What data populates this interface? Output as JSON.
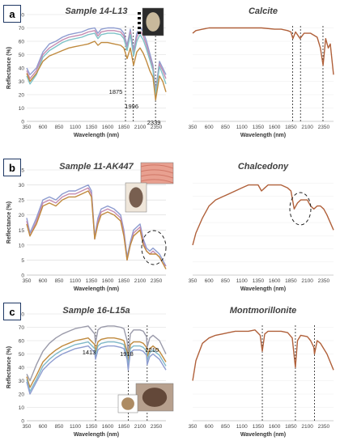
{
  "panel_letters": [
    "a",
    "b",
    "c"
  ],
  "chart_data": [
    {
      "id": "a-left",
      "type": "line",
      "title": "Sample 14-L13",
      "xlabel": "Wavelength (nm)",
      "ylabel": "Reflectance (%)",
      "xlim": [
        350,
        2500
      ],
      "ylim": [
        0,
        80
      ],
      "xticks": [
        350,
        600,
        850,
        1100,
        1350,
        1600,
        1850,
        2100,
        2350
      ],
      "yticks": [
        0,
        10,
        20,
        30,
        40,
        50,
        60,
        70,
        80
      ],
      "vlines": [
        1875,
        1996,
        2339
      ],
      "annotations": [
        "1875",
        "1996",
        "2339"
      ],
      "series": [
        {
          "color": "#8e9cd0",
          "x": [
            350,
            400,
            500,
            600,
            700,
            800,
            900,
            1000,
            1100,
            1200,
            1300,
            1400,
            1450,
            1500,
            1600,
            1700,
            1800,
            1850,
            1900,
            1950,
            2000,
            2050,
            2100,
            2150,
            2200,
            2250,
            2300,
            2340,
            2400,
            2450,
            2500
          ],
          "y": [
            40,
            35,
            40,
            52,
            58,
            60,
            63,
            65,
            66,
            67,
            69,
            70,
            66,
            69,
            70,
            70,
            69,
            66,
            57,
            69,
            53,
            66,
            71,
            67,
            60,
            51,
            42,
            23,
            45,
            40,
            35
          ]
        },
        {
          "color": "#c48bb0",
          "x": [
            350,
            400,
            500,
            600,
            700,
            800,
            900,
            1000,
            1100,
            1200,
            1300,
            1400,
            1450,
            1500,
            1600,
            1700,
            1800,
            1850,
            1900,
            1950,
            2000,
            2050,
            2100,
            2150,
            2200,
            2250,
            2300,
            2340,
            2400,
            2450,
            2500
          ],
          "y": [
            38,
            32,
            38,
            50,
            55,
            58,
            61,
            63,
            64,
            65,
            67,
            68,
            64,
            67,
            68,
            68,
            67,
            64,
            55,
            67,
            51,
            63,
            68,
            64,
            57,
            48,
            40,
            22,
            43,
            38,
            32
          ]
        },
        {
          "color": "#7fc3c8",
          "x": [
            350,
            400,
            500,
            600,
            700,
            800,
            900,
            1000,
            1100,
            1200,
            1300,
            1400,
            1450,
            1500,
            1600,
            1700,
            1800,
            1850,
            1900,
            1950,
            2000,
            2050,
            2100,
            2150,
            2200,
            2250,
            2300,
            2340,
            2400,
            2450,
            2500
          ],
          "y": [
            34,
            28,
            35,
            48,
            53,
            56,
            59,
            61,
            62,
            63,
            65,
            66,
            62,
            65,
            66,
            66,
            65,
            62,
            53,
            65,
            49,
            60,
            65,
            61,
            54,
            46,
            38,
            20,
            41,
            35,
            28
          ]
        },
        {
          "color": "#c08a3e",
          "x": [
            350,
            400,
            500,
            600,
            700,
            800,
            900,
            1000,
            1100,
            1200,
            1300,
            1400,
            1450,
            1500,
            1600,
            1700,
            1800,
            1850,
            1900,
            1950,
            2000,
            2050,
            2100,
            2150,
            2200,
            2250,
            2300,
            2340,
            2400,
            2450,
            2500
          ],
          "y": [
            36,
            30,
            36,
            45,
            49,
            51,
            53,
            55,
            56,
            57,
            58,
            60,
            57,
            59,
            59,
            58,
            57,
            55,
            47,
            55,
            42,
            52,
            55,
            51,
            45,
            38,
            33,
            16,
            34,
            30,
            22
          ]
        }
      ]
    },
    {
      "id": "a-right",
      "type": "line",
      "title": "Calcite",
      "xlabel": "Wavelength (nm)",
      "ylabel": "",
      "xlim": [
        350,
        2500
      ],
      "ylim": [
        0,
        80
      ],
      "xticks": [
        350,
        600,
        850,
        1100,
        1350,
        1600,
        1850,
        2100,
        2350
      ],
      "yticks": [],
      "vlines": [
        1875,
        1996,
        2339
      ],
      "annotations": [],
      "series": [
        {
          "color": "#b0603a",
          "x": [
            350,
            400,
            500,
            600,
            800,
            1000,
            1200,
            1400,
            1600,
            1700,
            1800,
            1850,
            1880,
            1920,
            1990,
            2050,
            2150,
            2250,
            2300,
            2340,
            2380,
            2420,
            2450,
            2500
          ],
          "y": [
            66,
            68,
            69,
            70,
            70,
            70,
            70,
            70,
            69,
            69,
            68,
            67,
            62,
            67,
            62,
            66,
            66,
            63,
            55,
            42,
            62,
            55,
            58,
            35
          ]
        }
      ]
    },
    {
      "id": "b-left",
      "type": "line",
      "title": "Sample 11-AK447",
      "xlabel": "Wavelength (nm)",
      "ylabel": "Reflectance (%)",
      "xlim": [
        350,
        2500
      ],
      "ylim": [
        0,
        35
      ],
      "xticks": [
        350,
        600,
        850,
        1100,
        1350,
        1600,
        1850,
        2100,
        2350
      ],
      "yticks": [
        0,
        5,
        10,
        15,
        20,
        25,
        30,
        35
      ],
      "vlines": [],
      "annotations": [],
      "series": [
        {
          "color": "#8e9cd0",
          "x": [
            350,
            400,
            500,
            600,
            700,
            800,
            900,
            1000,
            1100,
            1200,
            1300,
            1350,
            1400,
            1450,
            1500,
            1600,
            1700,
            1800,
            1850,
            1900,
            1950,
            2000,
            2100,
            2150,
            2200,
            2250,
            2300,
            2350,
            2400,
            2450,
            2500
          ],
          "y": [
            19,
            14,
            19,
            25,
            26,
            25,
            27,
            28,
            28,
            29,
            30,
            28,
            13,
            19,
            22,
            23,
            22,
            20,
            15,
            6,
            11,
            15,
            17,
            12,
            9,
            8,
            9,
            8,
            7,
            5,
            3
          ]
        },
        {
          "color": "#c48bb0",
          "x": [
            350,
            400,
            500,
            600,
            700,
            800,
            900,
            1000,
            1100,
            1200,
            1300,
            1350,
            1400,
            1450,
            1500,
            1600,
            1700,
            1800,
            1850,
            1900,
            1950,
            2000,
            2100,
            2150,
            2200,
            2250,
            2300,
            2350,
            2400,
            2450,
            2500
          ],
          "y": [
            18,
            13,
            18,
            24,
            25,
            24,
            26,
            27,
            27,
            28,
            29,
            27,
            12,
            18,
            21,
            22,
            21,
            19,
            14,
            5,
            10,
            14,
            16,
            11,
            8,
            7,
            8,
            7,
            6,
            4,
            3
          ]
        },
        {
          "color": "#c08a3e",
          "x": [
            350,
            400,
            500,
            600,
            700,
            800,
            900,
            1000,
            1100,
            1200,
            1300,
            1350,
            1400,
            1450,
            1500,
            1600,
            1700,
            1800,
            1850,
            1900,
            1950,
            2000,
            2100,
            2150,
            2200,
            2250,
            2300,
            2350,
            2400,
            2450,
            2500
          ],
          "y": [
            17,
            13,
            17,
            23,
            24,
            23,
            25,
            26,
            26,
            27,
            28,
            26,
            12,
            17,
            20,
            21,
            20,
            18,
            13,
            5,
            10,
            13,
            15,
            10,
            8,
            7,
            7,
            7,
            6,
            4,
            2
          ]
        }
      ]
    },
    {
      "id": "b-right",
      "type": "line",
      "title": "Chalcedony",
      "xlabel": "Wavelength (nm)",
      "ylabel": "",
      "xlim": [
        350,
        2500
      ],
      "ylim": [
        0,
        35
      ],
      "xticks": [
        350,
        600,
        850,
        1100,
        1350,
        1600,
        1850,
        2100,
        2350
      ],
      "yticks": [],
      "vlines": [],
      "annotations": [],
      "series": [
        {
          "color": "#b0603a",
          "x": [
            350,
            400,
            500,
            600,
            700,
            800,
            900,
            1000,
            1100,
            1200,
            1300,
            1350,
            1400,
            1450,
            1500,
            1600,
            1700,
            1800,
            1850,
            1900,
            1950,
            2000,
            2100,
            2150,
            2200,
            2250,
            2300,
            2350,
            2400,
            2500
          ],
          "y": [
            10,
            14,
            19,
            23,
            25,
            26,
            27,
            28,
            29,
            30,
            30,
            30,
            28,
            29,
            30,
            30,
            30,
            29,
            28,
            22,
            24,
            25,
            25,
            23,
            22,
            23,
            23,
            22,
            20,
            15
          ]
        }
      ]
    },
    {
      "id": "c-left",
      "type": "line",
      "title": "Sample 16-L15a",
      "xlabel": "Wavelength (nm)",
      "ylabel": "Reflectance (%)",
      "xlim": [
        350,
        2500
      ],
      "ylim": [
        0,
        80
      ],
      "xticks": [
        350,
        600,
        850,
        1100,
        1350,
        1600,
        1850,
        2100,
        2350
      ],
      "yticks": [
        0,
        10,
        20,
        30,
        40,
        50,
        60,
        70,
        80
      ],
      "vlines": [
        1413,
        1918,
        2210
      ],
      "annotations": [
        "1413",
        "1918",
        "2210"
      ],
      "series": [
        {
          "color": "#9a9aaa",
          "x": [
            350,
            400,
            500,
            600,
            700,
            800,
            900,
            1000,
            1100,
            1200,
            1300,
            1400,
            1413,
            1450,
            1500,
            1600,
            1700,
            1800,
            1850,
            1900,
            1918,
            1950,
            2000,
            2100,
            2150,
            2200,
            2210,
            2250,
            2300,
            2350,
            2400,
            2450,
            2500
          ],
          "y": [
            35,
            30,
            42,
            52,
            58,
            62,
            65,
            67,
            69,
            70,
            71,
            65,
            58,
            68,
            70,
            71,
            71,
            70,
            69,
            60,
            50,
            65,
            68,
            68,
            67,
            63,
            55,
            62,
            64,
            62,
            60,
            55,
            50
          ]
        },
        {
          "color": "#c08a3e",
          "x": [
            350,
            400,
            500,
            600,
            700,
            800,
            900,
            1000,
            1100,
            1200,
            1300,
            1400,
            1413,
            1450,
            1500,
            1600,
            1700,
            1800,
            1850,
            1900,
            1918,
            1950,
            2000,
            2100,
            2150,
            2200,
            2210,
            2250,
            2300,
            2350,
            2400,
            2450,
            2500
          ],
          "y": [
            33,
            25,
            34,
            44,
            49,
            53,
            56,
            58,
            60,
            61,
            62,
            57,
            52,
            59,
            61,
            62,
            62,
            61,
            60,
            52,
            44,
            57,
            59,
            59,
            58,
            55,
            48,
            54,
            56,
            54,
            52,
            48,
            44
          ]
        },
        {
          "color": "#7fb8c8",
          "x": [
            350,
            400,
            500,
            600,
            700,
            800,
            900,
            1000,
            1100,
            1200,
            1300,
            1400,
            1413,
            1450,
            1500,
            1600,
            1700,
            1800,
            1850,
            1900,
            1918,
            1950,
            2000,
            2100,
            2150,
            2200,
            2210,
            2250,
            2300,
            2350,
            2400,
            2450,
            2500
          ],
          "y": [
            31,
            22,
            31,
            41,
            46,
            50,
            53,
            55,
            57,
            58,
            59,
            54,
            49,
            56,
            58,
            59,
            59,
            58,
            57,
            49,
            41,
            54,
            56,
            56,
            55,
            52,
            45,
            51,
            53,
            51,
            49,
            45,
            41
          ]
        },
        {
          "color": "#8e9cd0",
          "x": [
            350,
            400,
            500,
            600,
            700,
            800,
            900,
            1000,
            1100,
            1200,
            1300,
            1400,
            1413,
            1450,
            1500,
            1600,
            1700,
            1800,
            1850,
            1900,
            1918,
            1950,
            2000,
            2100,
            2150,
            2200,
            2210,
            2250,
            2300,
            2350,
            2400,
            2450,
            2500
          ],
          "y": [
            29,
            20,
            29,
            38,
            43,
            47,
            50,
            52,
            54,
            55,
            56,
            51,
            46,
            53,
            55,
            56,
            56,
            55,
            54,
            46,
            38,
            51,
            53,
            53,
            52,
            49,
            42,
            48,
            50,
            48,
            46,
            42,
            38
          ]
        }
      ]
    },
    {
      "id": "c-right",
      "type": "line",
      "title": "Montmorillonite",
      "xlabel": "Wavelength (nm)",
      "ylabel": "",
      "xlim": [
        350,
        2500
      ],
      "ylim": [
        0,
        80
      ],
      "xticks": [
        350,
        600,
        850,
        1100,
        1350,
        1600,
        1850,
        2100,
        2350
      ],
      "yticks": [],
      "vlines": [
        1413,
        1918,
        2210
      ],
      "annotations": [],
      "series": [
        {
          "color": "#b0603a",
          "x": [
            350,
            400,
            500,
            600,
            700,
            800,
            900,
            1000,
            1100,
            1200,
            1300,
            1380,
            1413,
            1450,
            1500,
            1600,
            1700,
            1800,
            1870,
            1918,
            1950,
            2000,
            2100,
            2150,
            2200,
            2210,
            2250,
            2300,
            2400,
            2500
          ],
          "y": [
            30,
            45,
            58,
            62,
            64,
            65,
            66,
            67,
            67,
            67,
            68,
            64,
            52,
            65,
            67,
            67,
            67,
            66,
            62,
            40,
            60,
            64,
            63,
            60,
            55,
            50,
            60,
            58,
            50,
            38
          ]
        }
      ]
    }
  ]
}
